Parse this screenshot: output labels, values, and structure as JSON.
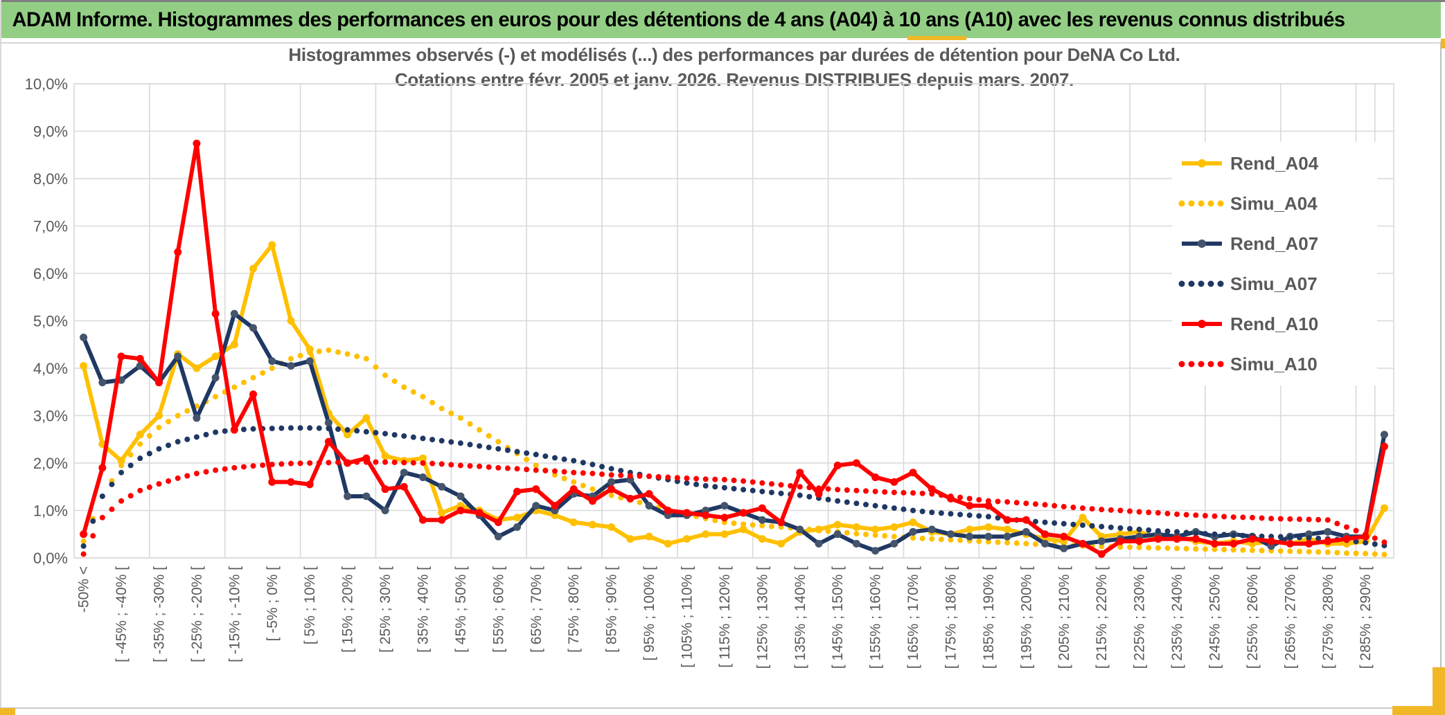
{
  "header": {
    "title": "ADAM Informe. Histogrammes des performances en euros pour des détentions de 4 ans (A04) à 10 ans (A10) avec les revenus connus distribués"
  },
  "chart": {
    "title_line1": "Histogrammes observés (-) et modélisés (...) des performances par durées de détention pour DeNA Co Ltd.",
    "title_line2": "Cotations entre févr. 2005 et janv. 2026. Revenus DISTRIBUES depuis mars. 2007."
  },
  "colors": {
    "header_green": "#93CE85",
    "accent_gold": "#F0B727",
    "gold_series": "#FFC000",
    "navy_series": "#1F3864",
    "navy_marker": "#44546A",
    "red_series": "#FF0000",
    "grid": "#D9D9D9",
    "text_grey": "#595959"
  },
  "chart_data": {
    "type": "line",
    "title": "Histogrammes observés (-) et modélisés (...) des performances par durées de détention pour DeNA Co Ltd.",
    "subtitle": "Cotations entre févr. 2005 et janv. 2026. Revenus DISTRIBUES depuis mars. 2007.",
    "grid": true,
    "legend_position": "right-top",
    "y_axis": {
      "min": 0,
      "max": 10,
      "step": 1,
      "unit": "%",
      "decimal": "comma",
      "tick_labels": [
        "10,0%",
        "9,0%",
        "8,0%",
        "7,0%",
        "6,0%",
        "5,0%",
        "4,0%",
        "3,0%",
        "2,0%",
        "1,0%",
        "0,0%"
      ]
    },
    "x_axis": {
      "n_bins": 70,
      "label_every_other_bin": true,
      "tick_labels": [
        "-50% <",
        "[ -45% ; -40% [",
        "[ -35% ; -30% [",
        "[ -25% ; -20% [",
        "[ -15% ; -10% [",
        "[ -5% ; 0% [",
        "[ 5% ; 10% [",
        "[ 15% ; 20% [",
        "[ 25% ; 30% [",
        "[ 35% ; 40% [",
        "[ 45% ; 50% [",
        "[ 55% ; 60% [",
        "[ 65% ; 70% [",
        "[ 75% ; 80% [",
        "[ 85% ; 90% [",
        "[ 95% ; 100% [",
        "[ 105% ; 110% [",
        "[ 115% ; 120% [",
        "[ 125% ; 130% [",
        "[ 135% ; 140% [",
        "[ 145% ; 150% [",
        "[ 155% ; 160% [",
        "[ 165% ; 170% [",
        "[ 175% ; 180% [",
        "[ 185% ; 190% [",
        "[ 195% ; 200% [",
        "[ 205% ; 210% [",
        "[ 215% ; 220% [",
        "[ 225% ; 230% [",
        "[ 235% ; 240% [",
        "[ 245% ; 250% [",
        "[ 255% ; 260% [",
        "[ 265% ; 270% [",
        "[ 275% ; 280% [",
        "[ 285% ; 290% ["
      ]
    },
    "series": [
      {
        "name": "Rend_A04",
        "style": "solid",
        "color": "#FFC000",
        "marker": "#FFC000",
        "values": [
          4.05,
          2.4,
          2.05,
          2.6,
          3.0,
          4.3,
          4.0,
          4.25,
          4.5,
          6.1,
          6.6,
          5.0,
          4.4,
          3.05,
          2.6,
          2.95,
          2.15,
          2.05,
          2.1,
          0.95,
          1.1,
          1.0,
          0.8,
          0.85,
          1.0,
          0.9,
          0.75,
          0.7,
          0.65,
          0.4,
          0.45,
          0.3,
          0.4,
          0.5,
          0.5,
          0.6,
          0.4,
          0.3,
          0.55,
          0.6,
          0.7,
          0.65,
          0.6,
          0.65,
          0.75,
          0.55,
          0.5,
          0.6,
          0.65,
          0.6,
          0.5,
          0.4,
          0.35,
          0.85,
          0.45,
          0.5,
          0.55,
          0.4,
          0.45,
          0.35,
          0.3,
          0.35,
          0.3,
          0.35,
          0.3,
          0.4,
          0.3,
          0.3,
          0.35,
          1.05
        ]
      },
      {
        "name": "Simu_A04",
        "style": "dotted",
        "color": "#FFC000",
        "marker": "#FFC000",
        "values": [
          0.35,
          1.3,
          1.95,
          2.4,
          2.75,
          3.0,
          3.2,
          3.4,
          3.6,
          3.8,
          4.0,
          4.2,
          4.33,
          4.38,
          4.3,
          4.2,
          3.85,
          3.6,
          3.4,
          3.15,
          2.95,
          2.7,
          2.45,
          2.2,
          1.95,
          1.75,
          1.6,
          1.45,
          1.32,
          1.22,
          1.12,
          1.0,
          0.92,
          0.83,
          0.75,
          0.71,
          0.68,
          0.65,
          0.62,
          0.58,
          0.55,
          0.51,
          0.48,
          0.45,
          0.42,
          0.4,
          0.38,
          0.36,
          0.34,
          0.32,
          0.3,
          0.28,
          0.27,
          0.25,
          0.24,
          0.23,
          0.22,
          0.21,
          0.2,
          0.19,
          0.18,
          0.17,
          0.16,
          0.15,
          0.14,
          0.13,
          0.12,
          0.1,
          0.09,
          0.07
        ]
      },
      {
        "name": "Rend_A07",
        "style": "solid",
        "color": "#1F3864",
        "marker": "#44546A",
        "values": [
          4.65,
          3.7,
          3.75,
          4.05,
          3.7,
          4.25,
          2.95,
          3.8,
          5.15,
          4.85,
          4.15,
          4.05,
          4.15,
          2.85,
          1.3,
          1.3,
          1.0,
          1.8,
          1.7,
          1.5,
          1.3,
          0.9,
          0.45,
          0.65,
          1.1,
          1.0,
          1.35,
          1.3,
          1.6,
          1.65,
          1.1,
          0.9,
          0.9,
          1.0,
          1.1,
          0.95,
          0.8,
          0.75,
          0.6,
          0.3,
          0.5,
          0.3,
          0.15,
          0.3,
          0.55,
          0.6,
          0.5,
          0.45,
          0.45,
          0.45,
          0.55,
          0.3,
          0.2,
          0.3,
          0.35,
          0.4,
          0.45,
          0.5,
          0.45,
          0.55,
          0.45,
          0.5,
          0.45,
          0.25,
          0.45,
          0.5,
          0.55,
          0.45,
          0.45,
          2.6
        ]
      },
      {
        "name": "Simu_A07",
        "style": "dotted",
        "color": "#1F3864",
        "marker": "#1F3864",
        "values": [
          0.25,
          1.3,
          1.8,
          2.1,
          2.3,
          2.45,
          2.55,
          2.65,
          2.7,
          2.72,
          2.73,
          2.74,
          2.74,
          2.73,
          2.7,
          2.66,
          2.62,
          2.57,
          2.52,
          2.47,
          2.42,
          2.36,
          2.3,
          2.24,
          2.18,
          2.11,
          2.05,
          1.97,
          1.88,
          1.8,
          1.72,
          1.65,
          1.58,
          1.52,
          1.48,
          1.44,
          1.4,
          1.36,
          1.32,
          1.26,
          1.2,
          1.15,
          1.1,
          1.05,
          1.0,
          0.96,
          0.93,
          0.9,
          0.87,
          0.82,
          0.78,
          0.75,
          0.72,
          0.69,
          0.66,
          0.63,
          0.6,
          0.57,
          0.55,
          0.52,
          0.5,
          0.48,
          0.46,
          0.45,
          0.44,
          0.42,
          0.4,
          0.37,
          0.32,
          0.26
        ]
      },
      {
        "name": "Rend_A10",
        "style": "solid",
        "color": "#FF0000",
        "marker": "#FF0000",
        "values": [
          0.5,
          1.9,
          4.25,
          4.2,
          3.7,
          6.45,
          8.74,
          5.15,
          2.7,
          3.45,
          1.6,
          1.6,
          1.55,
          2.45,
          2.0,
          2.1,
          1.45,
          1.5,
          0.8,
          0.8,
          1.0,
          0.95,
          0.75,
          1.4,
          1.45,
          1.1,
          1.45,
          1.2,
          1.45,
          1.25,
          1.35,
          1.0,
          0.95,
          0.9,
          0.85,
          0.95,
          1.05,
          0.75,
          1.8,
          1.35,
          1.95,
          2.0,
          1.7,
          1.6,
          1.8,
          1.45,
          1.25,
          1.1,
          1.1,
          0.8,
          0.8,
          0.5,
          0.45,
          0.3,
          0.08,
          0.35,
          0.35,
          0.4,
          0.4,
          0.4,
          0.3,
          0.3,
          0.4,
          0.35,
          0.3,
          0.3,
          0.35,
          0.4,
          0.45,
          2.35
        ]
      },
      {
        "name": "Simu_A10",
        "style": "dotted",
        "color": "#FF0000",
        "marker": "#FF0000",
        "values": [
          0.08,
          0.85,
          1.2,
          1.42,
          1.56,
          1.68,
          1.78,
          1.85,
          1.9,
          1.94,
          1.97,
          1.99,
          2.0,
          2.01,
          2.02,
          2.02,
          2.02,
          2.01,
          2.0,
          1.98,
          1.95,
          1.93,
          1.9,
          1.88,
          1.85,
          1.83,
          1.8,
          1.78,
          1.75,
          1.73,
          1.72,
          1.7,
          1.68,
          1.66,
          1.65,
          1.62,
          1.58,
          1.54,
          1.5,
          1.47,
          1.44,
          1.42,
          1.4,
          1.38,
          1.37,
          1.35,
          1.3,
          1.25,
          1.2,
          1.18,
          1.15,
          1.12,
          1.08,
          1.05,
          1.02,
          1.0,
          0.97,
          0.95,
          0.92,
          0.9,
          0.88,
          0.86,
          0.85,
          0.83,
          0.82,
          0.81,
          0.8,
          0.65,
          0.5,
          0.33
        ]
      }
    ],
    "legend": [
      "Rend_A04",
      "Simu_A04",
      "Rend_A07",
      "Simu_A07",
      "Rend_A10",
      "Simu_A10"
    ]
  }
}
